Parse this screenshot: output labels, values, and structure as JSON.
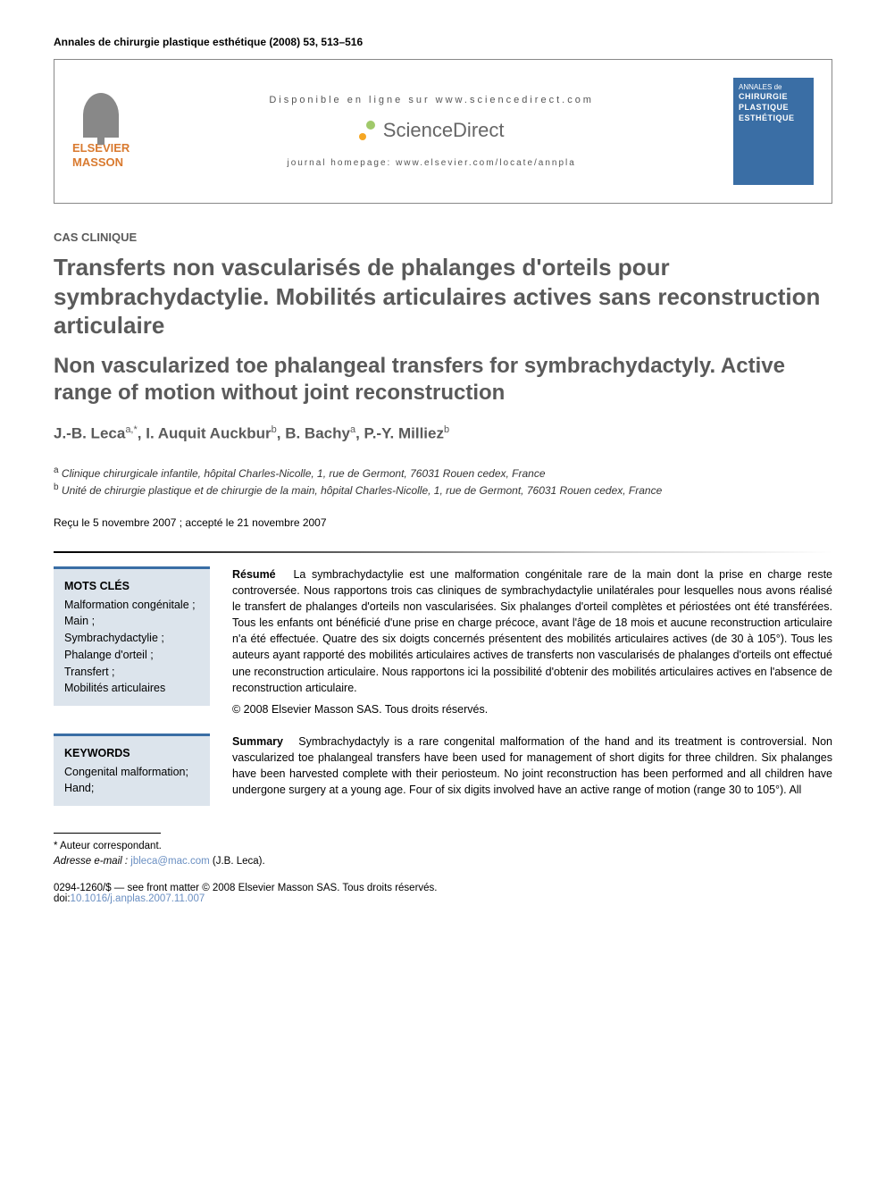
{
  "journal_ref": "Annales de chirurgie plastique esthétique (2008) 53, 513–516",
  "header": {
    "publisher_name_line1": "ELSEVIER",
    "publisher_name_line2": "MASSON",
    "available_online": "Disponible en ligne sur www.sciencedirect.com",
    "sciencedirect_label": "ScienceDirect",
    "journal_homepage": "journal homepage: www.elsevier.com/locate/annpla",
    "cover_text_line1": "ANNALES de",
    "cover_text_line2": "CHIRURGIE",
    "cover_text_line3": "PLASTIQUE",
    "cover_text_line4": "ESTHÉTIQUE"
  },
  "article_type": "CAS CLINIQUE",
  "title_fr": "Transferts non vascularisés de phalanges d'orteils pour symbrachydactylie. Mobilités articulaires actives sans reconstruction articulaire",
  "title_en": "Non vascularized toe phalangeal transfers for symbrachydactyly. Active range of motion without joint reconstruction",
  "authors_html": "J.-B. Leca<sup>a,*</sup>, I. Auquit Auckbur<sup>b</sup>, B. Bachy<sup>a</sup>, P.-Y. Milliez<sup>b</sup>",
  "authors": [
    {
      "name": "J.-B. Leca",
      "affil": "a,*"
    },
    {
      "name": "I. Auquit Auckbur",
      "affil": "b"
    },
    {
      "name": "B. Bachy",
      "affil": "a"
    },
    {
      "name": "P.-Y. Milliez",
      "affil": "b"
    }
  ],
  "affiliations": {
    "a": "Clinique chirurgicale infantile, hôpital Charles-Nicolle, 1, rue de Germont, 76031 Rouen cedex, France",
    "b": "Unité de chirurgie plastique et de chirurgie de la main, hôpital Charles-Nicolle, 1, rue de Germont, 76031 Rouen cedex, France"
  },
  "dates": "Reçu le 5 novembre 2007 ; accepté le 21 novembre 2007",
  "keywords_fr": {
    "title": "MOTS CLÉS",
    "items": "Malformation congénitale ;\nMain ;\nSymbrachydactylie ;\nPhalange d'orteil ;\nTransfert ;\nMobilités articulaires"
  },
  "keywords_en": {
    "title": "KEYWORDS",
    "items": "Congenital malformation;\nHand;"
  },
  "abstract_fr": {
    "label": "Résumé",
    "text": "La symbrachydactylie est une malformation congénitale rare de la main dont la prise en charge reste controversée. Nous rapportons trois cas cliniques de symbrachydactylie unilatérales pour lesquelles nous avons réalisé le transfert de phalanges d'orteils non vascularisées. Six phalanges d'orteil complètes et périostées ont été transférées. Tous les enfants ont bénéficié d'une prise en charge précoce, avant l'âge de 18 mois et aucune reconstruction articulaire n'a été effectuée. Quatre des six doigts concernés présentent des mobilités articulaires actives (de 30 à 105°). Tous les auteurs ayant rapporté des mobilités articulaires actives de transferts non vascularisés de phalanges d'orteils ont effectué une reconstruction articulaire. Nous rapportons ici la possibilité d'obtenir des mobilités articulaires actives en l'absence de reconstruction articulaire.",
    "copyright": "© 2008 Elsevier Masson SAS. Tous droits réservés."
  },
  "abstract_en": {
    "label": "Summary",
    "text": "Symbrachydactyly is a rare congenital malformation of the hand and its treatment is controversial. Non vascularized toe phalangeal transfers have been used for management of short digits for three children. Six phalanges have been harvested complete with their periosteum. No joint reconstruction has been performed and all children have undergone surgery at a young age. Four of six digits involved have an active range of motion (range 30 to 105°). All"
  },
  "footnotes": {
    "corresponding": "* Auteur correspondant.",
    "email_label": "Adresse e-mail :",
    "email": "jbleca@mac.com",
    "email_name": "(J.B. Leca)."
  },
  "doi_line": {
    "front_matter": "0294-1260/$ — see front matter © 2008 Elsevier Masson SAS. Tous droits réservés.",
    "doi_label": "doi:",
    "doi": "10.1016/j.anplas.2007.11.007"
  },
  "colors": {
    "title_gray": "#5a5a5a",
    "keyword_bg": "#dce4ec",
    "keyword_border": "#3a6ea5",
    "link_blue": "#6a8fc2",
    "publisher_orange": "#d97a2f"
  }
}
